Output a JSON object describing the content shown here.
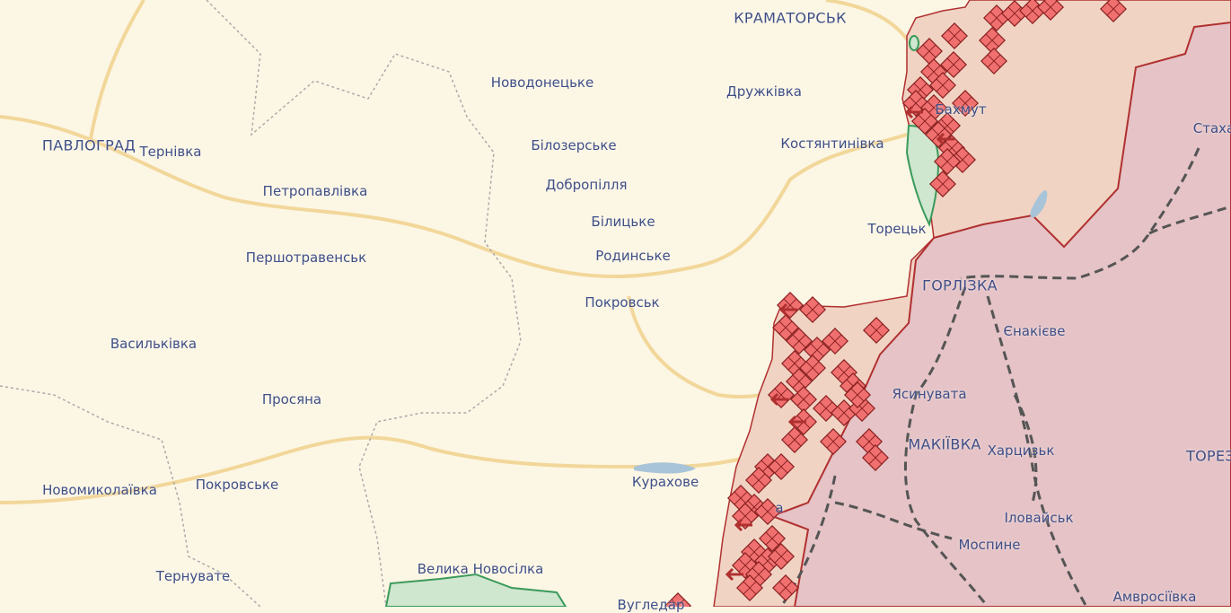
{
  "map": {
    "colors": {
      "background": "#fcf6e4",
      "occupied_since_2014": "#e5c3c6",
      "occupied_since_2022": "#f0d3c3",
      "liberated": "#cfe6cf",
      "border_line": "#b03030",
      "attack_marker": "#f07070",
      "roads": "#f2d79a",
      "railway": "#555555"
    },
    "labels": {
      "kramatorsk": "КРАМАТОРСЬК",
      "novodonetske": "Новодонецьке",
      "druzhkivka": "Дружківка",
      "pavlohrad": "ПАВЛОГРАД",
      "ternivka": "Тернівка",
      "bilozerske": "Білозерське",
      "kostiantynivka": "Костянтинівка",
      "bakhmut": "Бахмут",
      "stakhanov": "Стаха",
      "petropavlivka": "Петропавлівка",
      "dobropillia": "Добропілля",
      "bilytske": "Білицьке",
      "toretsk": "Торецьк",
      "pershotravensk": "Першотравенськ",
      "rodynske": "Родинське",
      "horlivka": "ГОРЛІЗКА",
      "pokrovsk": "Покровськ",
      "yenakiieve": "Єнакієве",
      "vasylkivka": "Васильківка",
      "yasynuvata": "Ясинувата",
      "prosiana": "Просяна",
      "makiivka": "МАКІЇВКА",
      "khartsyzk": "Харцизьк",
      "torez": "ТОРЕЗ",
      "novomykolaivka": "Новомиколаївка",
      "pokrovske": "Покровське",
      "kurakhove": "Курахове",
      "marinka": "а",
      "ilovaisk": "Іловайськ",
      "mospyne": "Моспине",
      "ternuvate": "Тернувате",
      "velyka_novosilka": "Велика Новосілка",
      "vuhledar": "Вугледар",
      "amvrosiivka": "Амвросіївка"
    },
    "icons": {
      "attack": "attack-diamond-icon",
      "advance": "advance-arrow-icon"
    }
  }
}
